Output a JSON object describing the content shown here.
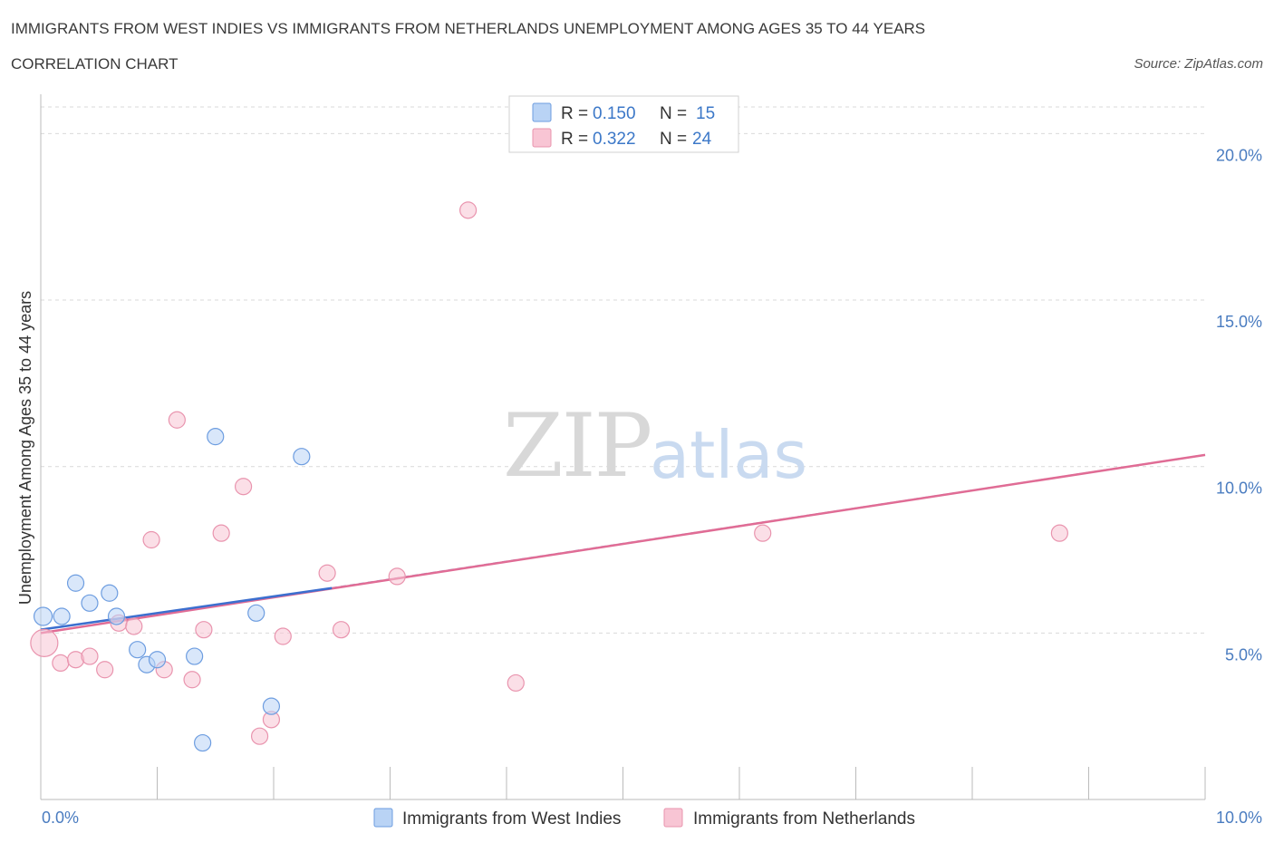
{
  "title_line1": "IMMIGRANTS FROM WEST INDIES VS IMMIGRANTS FROM NETHERLANDS UNEMPLOYMENT AMONG AGES 35 TO 44 YEARS",
  "title_line2": "CORRELATION CHART",
  "source": "Source: ZipAtlas.com",
  "watermark": {
    "zip": "ZIP",
    "atlas": "atlas"
  },
  "colors": {
    "blue_fill": "#b9d3f5",
    "blue_stroke": "#6d9de0",
    "blue_line": "#3c6fcf",
    "pink_fill": "#f8c5d4",
    "pink_stroke": "#e994ae",
    "pink_line": "#e06c95",
    "grid": "#d9d9d9",
    "axis_text": "#4a7cc0"
  },
  "legend": {
    "entries": [
      {
        "r_label": "R =",
        "r_value": "0.150",
        "n_label": "N =",
        "n_value": "15"
      },
      {
        "r_label": "R =",
        "r_value": "0.322",
        "n_label": "N =",
        "n_value": "24"
      }
    ]
  },
  "chart_data": {
    "type": "scatter",
    "title": "IMMIGRANTS FROM WEST INDIES VS IMMIGRANTS FROM NETHERLANDS UNEMPLOYMENT AMONG AGES 35 TO 44 YEARS",
    "subtitle": "CORRELATION CHART",
    "xlabel": "",
    "ylabel": "Unemployment Among Ages 35 to 44 years",
    "xlim": [
      0,
      10
    ],
    "ylim": [
      0,
      20
    ],
    "x_tick_labels": [
      "0.0%",
      "10.0%"
    ],
    "y_ticks": [
      5,
      10,
      15,
      20
    ],
    "y_tick_labels": [
      "5.0%",
      "10.0%",
      "15.0%",
      "20.0%"
    ],
    "grid": true,
    "legend_position": "top-center",
    "series": [
      {
        "name": "Immigrants from West Indies",
        "r": 0.15,
        "n": 15,
        "points": [
          {
            "x": 0.02,
            "y": 5.5,
            "size": 20
          },
          {
            "x": 0.18,
            "y": 5.5,
            "size": 18
          },
          {
            "x": 0.3,
            "y": 6.5,
            "size": 18
          },
          {
            "x": 0.42,
            "y": 5.9,
            "size": 18
          },
          {
            "x": 0.59,
            "y": 6.2,
            "size": 18
          },
          {
            "x": 0.65,
            "y": 5.5,
            "size": 18
          },
          {
            "x": 0.83,
            "y": 4.5,
            "size": 18
          },
          {
            "x": 0.91,
            "y": 4.05,
            "size": 18
          },
          {
            "x": 1.0,
            "y": 4.2,
            "size": 18
          },
          {
            "x": 1.32,
            "y": 4.3,
            "size": 18
          },
          {
            "x": 1.5,
            "y": 10.9,
            "size": 18
          },
          {
            "x": 1.39,
            "y": 1.7,
            "size": 18
          },
          {
            "x": 1.85,
            "y": 5.6,
            "size": 18
          },
          {
            "x": 1.98,
            "y": 2.8,
            "size": 18
          },
          {
            "x": 2.24,
            "y": 10.3,
            "size": 18
          }
        ],
        "trend": {
          "x": [
            0,
            2.5
          ],
          "y": [
            5.1,
            6.35
          ],
          "extended": {
            "x": [
              2.5,
              10
            ],
            "y": [
              6.35,
              10.35
            ]
          }
        }
      },
      {
        "name": "Immigrants from Netherlands",
        "r": 0.322,
        "n": 24,
        "points": [
          {
            "x": 0.03,
            "y": 4.7,
            "size": 30
          },
          {
            "x": 0.17,
            "y": 4.1,
            "size": 18
          },
          {
            "x": 0.3,
            "y": 4.2,
            "size": 18
          },
          {
            "x": 0.42,
            "y": 4.3,
            "size": 18
          },
          {
            "x": 0.55,
            "y": 3.9,
            "size": 18
          },
          {
            "x": 0.67,
            "y": 5.3,
            "size": 18
          },
          {
            "x": 0.8,
            "y": 5.2,
            "size": 18
          },
          {
            "x": 0.95,
            "y": 7.8,
            "size": 18
          },
          {
            "x": 1.06,
            "y": 3.9,
            "size": 18
          },
          {
            "x": 1.17,
            "y": 11.4,
            "size": 18
          },
          {
            "x": 1.3,
            "y": 3.6,
            "size": 18
          },
          {
            "x": 1.4,
            "y": 5.1,
            "size": 18
          },
          {
            "x": 1.55,
            "y": 8.0,
            "size": 18
          },
          {
            "x": 1.74,
            "y": 9.4,
            "size": 18
          },
          {
            "x": 1.88,
            "y": 1.9,
            "size": 18
          },
          {
            "x": 1.98,
            "y": 2.4,
            "size": 18
          },
          {
            "x": 2.08,
            "y": 4.9,
            "size": 18
          },
          {
            "x": 2.46,
            "y": 6.8,
            "size": 18
          },
          {
            "x": 2.58,
            "y": 5.1,
            "size": 18
          },
          {
            "x": 3.06,
            "y": 6.7,
            "size": 18
          },
          {
            "x": 3.67,
            "y": 17.7,
            "size": 18
          },
          {
            "x": 4.08,
            "y": 3.5,
            "size": 18
          },
          {
            "x": 6.2,
            "y": 8.0,
            "size": 18
          },
          {
            "x": 8.75,
            "y": 8.0,
            "size": 18
          }
        ],
        "trend": {
          "x": [
            0,
            10
          ],
          "y": [
            5.0,
            10.35
          ]
        }
      }
    ]
  },
  "bottom_legend": [
    {
      "label": "Immigrants from West Indies"
    },
    {
      "label": "Immigrants from Netherlands"
    }
  ]
}
